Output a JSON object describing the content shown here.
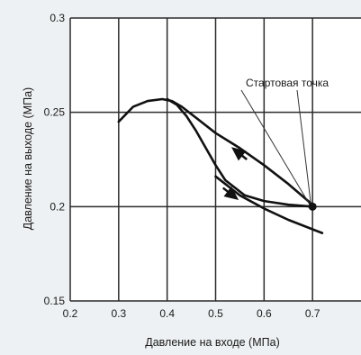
{
  "chart_data": {
    "type": "line",
    "xlabel": "Давление на входе (МПа)",
    "ylabel": "Давление на выходе (МПа)",
    "xlim": [
      0.2,
      0.8
    ],
    "ylim": [
      0.15,
      0.3
    ],
    "x_ticks": [
      0.2,
      0.3,
      0.4,
      0.5,
      0.6,
      0.7
    ],
    "x_tick_labels": [
      "0.2",
      "0.3",
      "0.4",
      "0.5",
      "0.6",
      "0.7"
    ],
    "y_ticks": [
      0.15,
      0.2,
      0.25,
      0.3
    ],
    "y_tick_labels": [
      "0.15",
      "0.2",
      "0.25",
      "0.3"
    ],
    "grid": true,
    "series": [
      {
        "role": "hump curve (decreasing inlet pressure)",
        "x": [
          0.3,
          0.33,
          0.36,
          0.39,
          0.41,
          0.43,
          0.46,
          0.5,
          0.55,
          0.6,
          0.65,
          0.7
        ],
        "y": [
          0.245,
          0.253,
          0.256,
          0.257,
          0.256,
          0.253,
          0.247,
          0.239,
          0.231,
          0.222,
          0.212,
          0.201
        ]
      },
      {
        "role": "inner curve (increasing inlet pressure)",
        "x": [
          0.4,
          0.42,
          0.44,
          0.46,
          0.48,
          0.5,
          0.52,
          0.56,
          0.6,
          0.65,
          0.7
        ],
        "y": [
          0.257,
          0.254,
          0.248,
          0.24,
          0.231,
          0.222,
          0.214,
          0.206,
          0.203,
          0.201,
          0.2
        ]
      },
      {
        "role": "lower branch",
        "x": [
          0.5,
          0.52,
          0.55,
          0.6,
          0.65,
          0.7,
          0.72
        ],
        "y": [
          0.216,
          0.212,
          0.206,
          0.199,
          0.193,
          0.188,
          0.186
        ]
      }
    ],
    "start_point": {
      "x": 0.7,
      "y": 0.2
    },
    "annotations": [
      {
        "text": "Стартовая точка",
        "target": {
          "x": 0.7,
          "y": 0.2
        }
      }
    ],
    "arrows": [
      {
        "direction": "up-left",
        "x": 0.55,
        "y": 0.228
      },
      {
        "direction": "down-right",
        "x": 0.53,
        "y": 0.207
      }
    ]
  }
}
